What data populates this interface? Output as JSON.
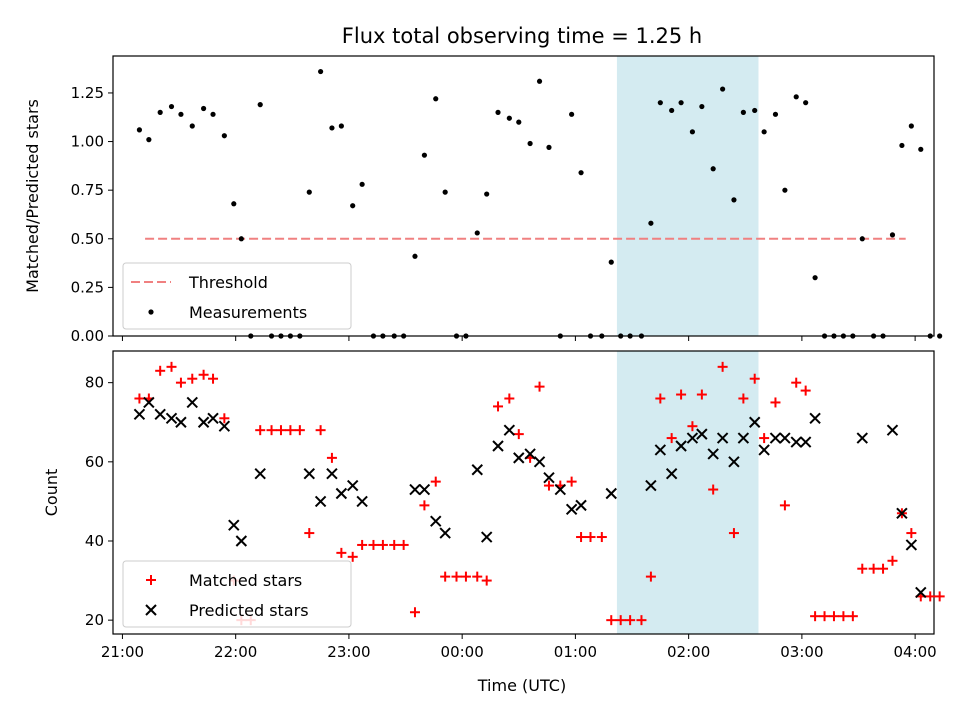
{
  "chart_data": [
    {
      "type": "scatter",
      "title": "Flux total observing time = 1.25 h",
      "xlabel": "",
      "ylabel": "Matched/Predicted stars",
      "xlim": [
        "20:55",
        "04:10"
      ],
      "ylim": [
        0,
        1.44
      ],
      "yticks": [
        "0.00",
        "0.25",
        "0.50",
        "0.75",
        "1.00",
        "1.25"
      ],
      "shaded_region": {
        "start": "01:22",
        "end": "02:37",
        "color": "#d4ebf1"
      },
      "legend": {
        "position": "lower-left",
        "entries": [
          "Threshold",
          "Measurements"
        ]
      },
      "series": [
        {
          "name": "Threshold",
          "style": "dashed-line",
          "color": "#f08080",
          "points": [
            [
              "21:12",
              0.5
            ],
            [
              "03:55",
              0.5
            ]
          ]
        },
        {
          "name": "Measurements",
          "style": "dot",
          "color": "#000000",
          "points": [
            [
              "21:09",
              1.06
            ],
            [
              "21:14",
              1.01
            ],
            [
              "21:20",
              1.15
            ],
            [
              "21:26",
              1.18
            ],
            [
              "21:31",
              1.14
            ],
            [
              "21:37",
              1.08
            ],
            [
              "21:43",
              1.17
            ],
            [
              "21:48",
              1.14
            ],
            [
              "21:54",
              1.03
            ],
            [
              "21:59",
              0.68
            ],
            [
              "22:03",
              0.5
            ],
            [
              "22:08",
              0.0
            ],
            [
              "22:13",
              1.19
            ],
            [
              "22:19",
              0.0
            ],
            [
              "22:24",
              0.0
            ],
            [
              "22:29",
              0.0
            ],
            [
              "22:34",
              0.0
            ],
            [
              "22:39",
              0.74
            ],
            [
              "22:45",
              1.36
            ],
            [
              "22:51",
              1.07
            ],
            [
              "22:56",
              1.08
            ],
            [
              "23:02",
              0.67
            ],
            [
              "23:07",
              0.78
            ],
            [
              "23:13",
              0.0
            ],
            [
              "23:18",
              0.0
            ],
            [
              "23:24",
              0.0
            ],
            [
              "23:29",
              0.0
            ],
            [
              "23:35",
              0.41
            ],
            [
              "23:40",
              0.93
            ],
            [
              "23:46",
              1.22
            ],
            [
              "23:51",
              0.74
            ],
            [
              "23:57",
              0.0
            ],
            [
              "00:02",
              0.0
            ],
            [
              "00:08",
              0.53
            ],
            [
              "00:13",
              0.73
            ],
            [
              "00:19",
              1.15
            ],
            [
              "00:25",
              1.12
            ],
            [
              "00:30",
              1.1
            ],
            [
              "00:36",
              0.99
            ],
            [
              "00:41",
              1.31
            ],
            [
              "00:46",
              0.97
            ],
            [
              "00:52",
              0.0
            ],
            [
              "00:58",
              1.14
            ],
            [
              "01:03",
              0.84
            ],
            [
              "01:08",
              0.0
            ],
            [
              "01:14",
              0.0
            ],
            [
              "01:19",
              0.38
            ],
            [
              "01:24",
              0.0
            ],
            [
              "01:29",
              0.0
            ],
            [
              "01:35",
              0.0
            ],
            [
              "01:40",
              0.58
            ],
            [
              "01:45",
              1.2
            ],
            [
              "01:51",
              1.16
            ],
            [
              "01:56",
              1.2
            ],
            [
              "02:02",
              1.05
            ],
            [
              "02:07",
              1.18
            ],
            [
              "02:13",
              0.86
            ],
            [
              "02:18",
              1.27
            ],
            [
              "02:24",
              0.7
            ],
            [
              "02:29",
              1.15
            ],
            [
              "02:35",
              1.16
            ],
            [
              "02:40",
              1.05
            ],
            [
              "02:46",
              1.14
            ],
            [
              "02:51",
              0.75
            ],
            [
              "02:57",
              1.23
            ],
            [
              "03:02",
              1.2
            ],
            [
              "03:07",
              0.3
            ],
            [
              "03:12",
              0.0
            ],
            [
              "03:17",
              0.0
            ],
            [
              "03:22",
              0.0
            ],
            [
              "03:27",
              0.0
            ],
            [
              "03:32",
              0.5
            ],
            [
              "03:38",
              0.0
            ],
            [
              "03:43",
              0.0
            ],
            [
              "03:48",
              0.52
            ],
            [
              "03:53",
              0.98
            ],
            [
              "03:58",
              1.08
            ],
            [
              "04:03",
              0.96
            ],
            [
              "04:08",
              0.0
            ],
            [
              "04:13",
              0.0
            ]
          ]
        }
      ]
    },
    {
      "type": "scatter",
      "title": "",
      "xlabel": "Time (UTC)",
      "ylabel": "Count",
      "xlim": [
        "20:55",
        "04:10"
      ],
      "ylim": [
        16.5,
        88
      ],
      "xticks": [
        "21:00",
        "22:00",
        "23:00",
        "00:00",
        "01:00",
        "02:00",
        "03:00",
        "04:00"
      ],
      "yticks": [
        "20",
        "40",
        "60",
        "80"
      ],
      "shaded_region": {
        "start": "01:22",
        "end": "02:37",
        "color": "#d4ebf1"
      },
      "legend": {
        "position": "lower-left",
        "entries": [
          "Matched stars",
          "Predicted stars"
        ]
      },
      "series": [
        {
          "name": "Matched stars",
          "style": "plus",
          "color": "#ff0000",
          "points": [
            [
              "21:09",
              76
            ],
            [
              "21:14",
              76
            ],
            [
              "21:20",
              83
            ],
            [
              "21:26",
              84
            ],
            [
              "21:31",
              80
            ],
            [
              "21:37",
              81
            ],
            [
              "21:43",
              82
            ],
            [
              "21:48",
              81
            ],
            [
              "21:54",
              71
            ],
            [
              "21:59",
              30
            ],
            [
              "22:03",
              20
            ],
            [
              "22:08",
              20
            ],
            [
              "22:13",
              68
            ],
            [
              "22:19",
              68
            ],
            [
              "22:24",
              68
            ],
            [
              "22:29",
              68
            ],
            [
              "22:34",
              68
            ],
            [
              "22:39",
              42
            ],
            [
              "22:45",
              68
            ],
            [
              "22:51",
              61
            ],
            [
              "22:56",
              37
            ],
            [
              "23:02",
              36
            ],
            [
              "23:07",
              39
            ],
            [
              "23:13",
              39
            ],
            [
              "23:18",
              39
            ],
            [
              "23:24",
              39
            ],
            [
              "23:29",
              39
            ],
            [
              "23:35",
              22
            ],
            [
              "23:40",
              49
            ],
            [
              "23:46",
              55
            ],
            [
              "23:51",
              31
            ],
            [
              "23:57",
              31
            ],
            [
              "00:02",
              31
            ],
            [
              "00:08",
              31
            ],
            [
              "00:13",
              30
            ],
            [
              "00:19",
              74
            ],
            [
              "00:25",
              76
            ],
            [
              "00:30",
              67
            ],
            [
              "00:36",
              61
            ],
            [
              "00:41",
              79
            ],
            [
              "00:46",
              54
            ],
            [
              "00:52",
              54
            ],
            [
              "00:58",
              55
            ],
            [
              "01:03",
              41
            ],
            [
              "01:08",
              41
            ],
            [
              "01:14",
              41
            ],
            [
              "01:19",
              20
            ],
            [
              "01:24",
              20
            ],
            [
              "01:29",
              20
            ],
            [
              "01:35",
              20
            ],
            [
              "01:40",
              31
            ],
            [
              "01:45",
              76
            ],
            [
              "01:51",
              66
            ],
            [
              "01:56",
              77
            ],
            [
              "02:02",
              69
            ],
            [
              "02:07",
              77
            ],
            [
              "02:13",
              53
            ],
            [
              "02:18",
              84
            ],
            [
              "02:24",
              42
            ],
            [
              "02:29",
              76
            ],
            [
              "02:35",
              81
            ],
            [
              "02:40",
              66
            ],
            [
              "02:46",
              75
            ],
            [
              "02:51",
              49
            ],
            [
              "02:57",
              80
            ],
            [
              "03:02",
              78
            ],
            [
              "03:07",
              21
            ],
            [
              "03:12",
              21
            ],
            [
              "03:17",
              21
            ],
            [
              "03:22",
              21
            ],
            [
              "03:27",
              21
            ],
            [
              "03:32",
              33
            ],
            [
              "03:38",
              33
            ],
            [
              "03:43",
              33
            ],
            [
              "03:48",
              35
            ],
            [
              "03:53",
              47
            ],
            [
              "03:58",
              42
            ],
            [
              "04:03",
              26
            ],
            [
              "04:08",
              26
            ],
            [
              "04:13",
              26
            ]
          ]
        },
        {
          "name": "Predicted stars",
          "style": "x",
          "color": "#000000",
          "points": [
            [
              "21:09",
              72
            ],
            [
              "21:14",
              75
            ],
            [
              "21:20",
              72
            ],
            [
              "21:26",
              71
            ],
            [
              "21:31",
              70
            ],
            [
              "21:37",
              75
            ],
            [
              "21:43",
              70
            ],
            [
              "21:48",
              71
            ],
            [
              "21:54",
              69
            ],
            [
              "21:59",
              44
            ],
            [
              "22:03",
              40
            ],
            [
              "22:13",
              57
            ],
            [
              "22:39",
              57
            ],
            [
              "22:45",
              50
            ],
            [
              "22:51",
              57
            ],
            [
              "22:56",
              52
            ],
            [
              "23:02",
              54
            ],
            [
              "23:07",
              50
            ],
            [
              "23:35",
              53
            ],
            [
              "23:40",
              53
            ],
            [
              "23:46",
              45
            ],
            [
              "23:51",
              42
            ],
            [
              "00:08",
              58
            ],
            [
              "00:13",
              41
            ],
            [
              "00:19",
              64
            ],
            [
              "00:25",
              68
            ],
            [
              "00:30",
              61
            ],
            [
              "00:36",
              62
            ],
            [
              "00:41",
              60
            ],
            [
              "00:46",
              56
            ],
            [
              "00:52",
              53
            ],
            [
              "00:58",
              48
            ],
            [
              "01:03",
              49
            ],
            [
              "01:19",
              52
            ],
            [
              "01:40",
              54
            ],
            [
              "01:45",
              63
            ],
            [
              "01:51",
              57
            ],
            [
              "01:56",
              64
            ],
            [
              "02:02",
              66
            ],
            [
              "02:07",
              67
            ],
            [
              "02:13",
              62
            ],
            [
              "02:18",
              66
            ],
            [
              "02:24",
              60
            ],
            [
              "02:29",
              66
            ],
            [
              "02:35",
              70
            ],
            [
              "02:40",
              63
            ],
            [
              "02:46",
              66
            ],
            [
              "02:51",
              66
            ],
            [
              "02:57",
              65
            ],
            [
              "03:02",
              65
            ],
            [
              "03:07",
              71
            ],
            [
              "03:32",
              66
            ],
            [
              "03:48",
              68
            ],
            [
              "03:53",
              47
            ],
            [
              "03:58",
              39
            ],
            [
              "04:03",
              27
            ]
          ]
        }
      ]
    }
  ]
}
